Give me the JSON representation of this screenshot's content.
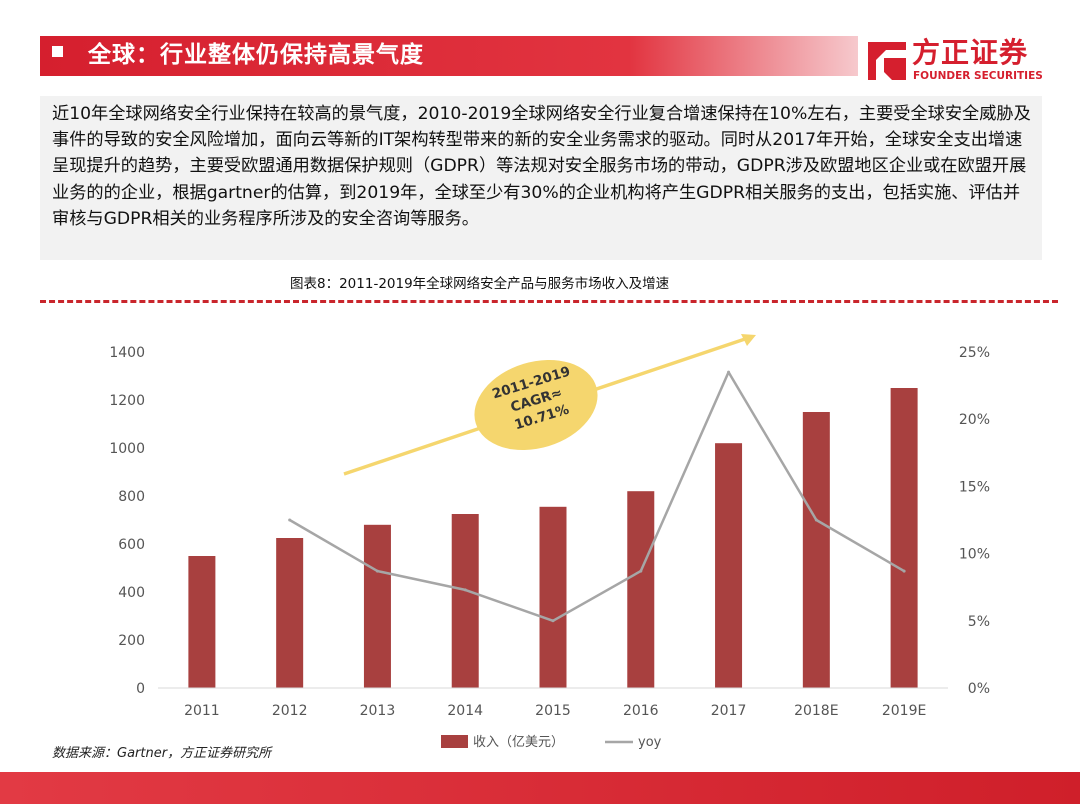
{
  "header": {
    "title": "全球：行业整体仍保持高景气度",
    "logo_cn": "方正证券",
    "logo_en": "FOUNDER SECURITIES"
  },
  "body_text": "近10年全球网络安全行业保持在较高的景气度，2010-2019全球网络安全行业复合增速保持在10%左右，主要受全球安全威胁及事件的导致的安全风险增加，面向云等新的IT架构转型带来的新的安全业务需求的驱动。同时从2017年开始，全球安全支出增速呈现提升的趋势，主要受欧盟通用数据保护规则（GDPR）等法规对安全服务市场的带动，GDPR涉及欧盟地区企业或在欧盟开展业务的的企业，根据gartner的估算，到2019年，全球至少有30%的企业机构将产生GDPR相关服务的支出，包括实施、评估并审核与GDPR相关的业务程序所涉及的安全咨询等服务。",
  "figure_caption": "图表8：2011-2019年全球网络安全产品与服务市场收入及增速",
  "source": "数据来源：Gartner，方正证券研究所",
  "colors": {
    "accent": "#d51f2e",
    "bar": "#a8403f",
    "line": "#a6a6a6",
    "bubble": "#f5d66e"
  },
  "chart_data": {
    "type": "bar",
    "categories": [
      "2011",
      "2012",
      "2013",
      "2014",
      "2015",
      "2016",
      "2017",
      "2018E",
      "2019E"
    ],
    "series": [
      {
        "name": "收入（亿美元）",
        "type": "bar",
        "axis": "left",
        "values": [
          550,
          625,
          680,
          725,
          755,
          820,
          1020,
          1150,
          1250
        ]
      },
      {
        "name": "yoy",
        "type": "line",
        "axis": "right",
        "values": [
          null,
          0.125,
          0.087,
          0.073,
          0.05,
          0.087,
          0.235,
          0.125,
          0.087
        ]
      }
    ],
    "y_left": {
      "min": 0,
      "max": 1400,
      "ticks": [
        "0",
        "200",
        "400",
        "600",
        "800",
        "1000",
        "1200",
        "1400"
      ]
    },
    "y_right": {
      "min": 0,
      "max": 0.25,
      "ticks": [
        "0%",
        "5%",
        "10%",
        "15%",
        "20%",
        "25%"
      ]
    },
    "annotation": {
      "lines": [
        "2011-2019",
        "CAGR≈",
        "10.71%"
      ]
    },
    "legend_position": "bottom",
    "grid": false
  }
}
